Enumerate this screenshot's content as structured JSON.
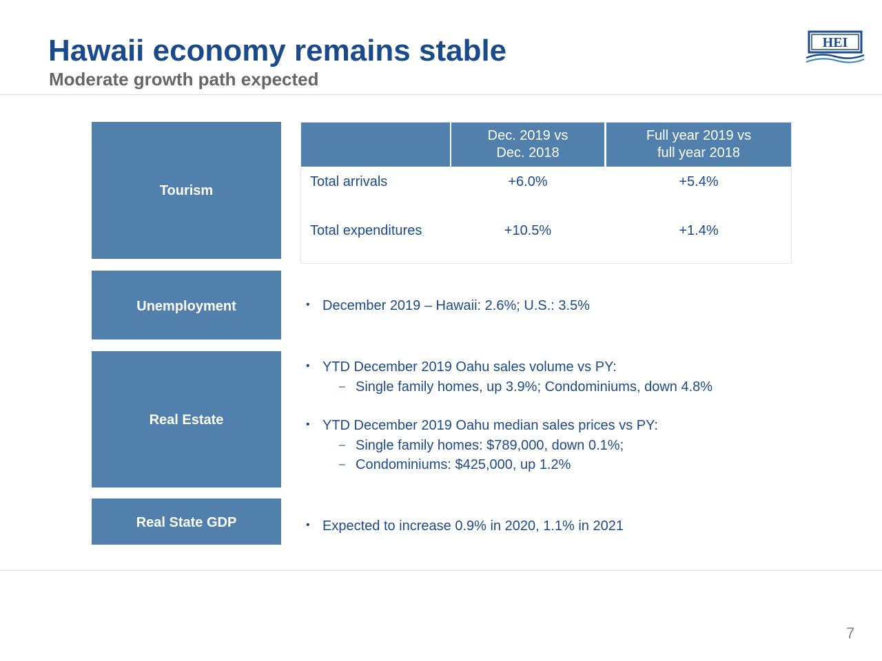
{
  "header": {
    "title": "Hawaii economy remains stable",
    "subtitle": "Moderate growth path expected",
    "logo_text": "HEI"
  },
  "colors": {
    "title": "#1b4a8a",
    "subtitle": "#666666",
    "label_fill": "#5080ab",
    "body_text": "#1b4a8a"
  },
  "sections": {
    "tourism": {
      "label": "Tourism",
      "table": {
        "col1_header_line1": "Dec. 2019 vs",
        "col1_header_line2": "Dec. 2018",
        "col2_header_line1": "Full year 2019 vs",
        "col2_header_line2": "full year 2018",
        "rows": [
          {
            "label": "Total arrivals",
            "dec": "+6.0%",
            "full": "+5.4%"
          },
          {
            "label": "Total expenditures",
            "dec": "+10.5%",
            "full": "+1.4%"
          }
        ]
      }
    },
    "unemployment": {
      "label": "Unemployment",
      "bullet": "December 2019 – Hawaii: 2.6%; U.S.: 3.5%"
    },
    "real_estate": {
      "label": "Real Estate",
      "bullet1": "YTD December 2019 Oahu sales volume vs PY:",
      "bullet1_sub1": "Single family homes, up 3.9%; Condominiums, down 4.8%",
      "bullet2": "YTD December 2019 Oahu median sales prices vs PY:",
      "bullet2_sub1": "Single family homes:  $789,000, down 0.1%;",
      "bullet2_sub2": "Condominiums:  $425,000, up 1.2%"
    },
    "gdp": {
      "label": "Real State GDP",
      "bullet": "Expected to increase 0.9% in 2020, 1.1% in 2021"
    }
  },
  "footer": {
    "page_number": "7"
  }
}
